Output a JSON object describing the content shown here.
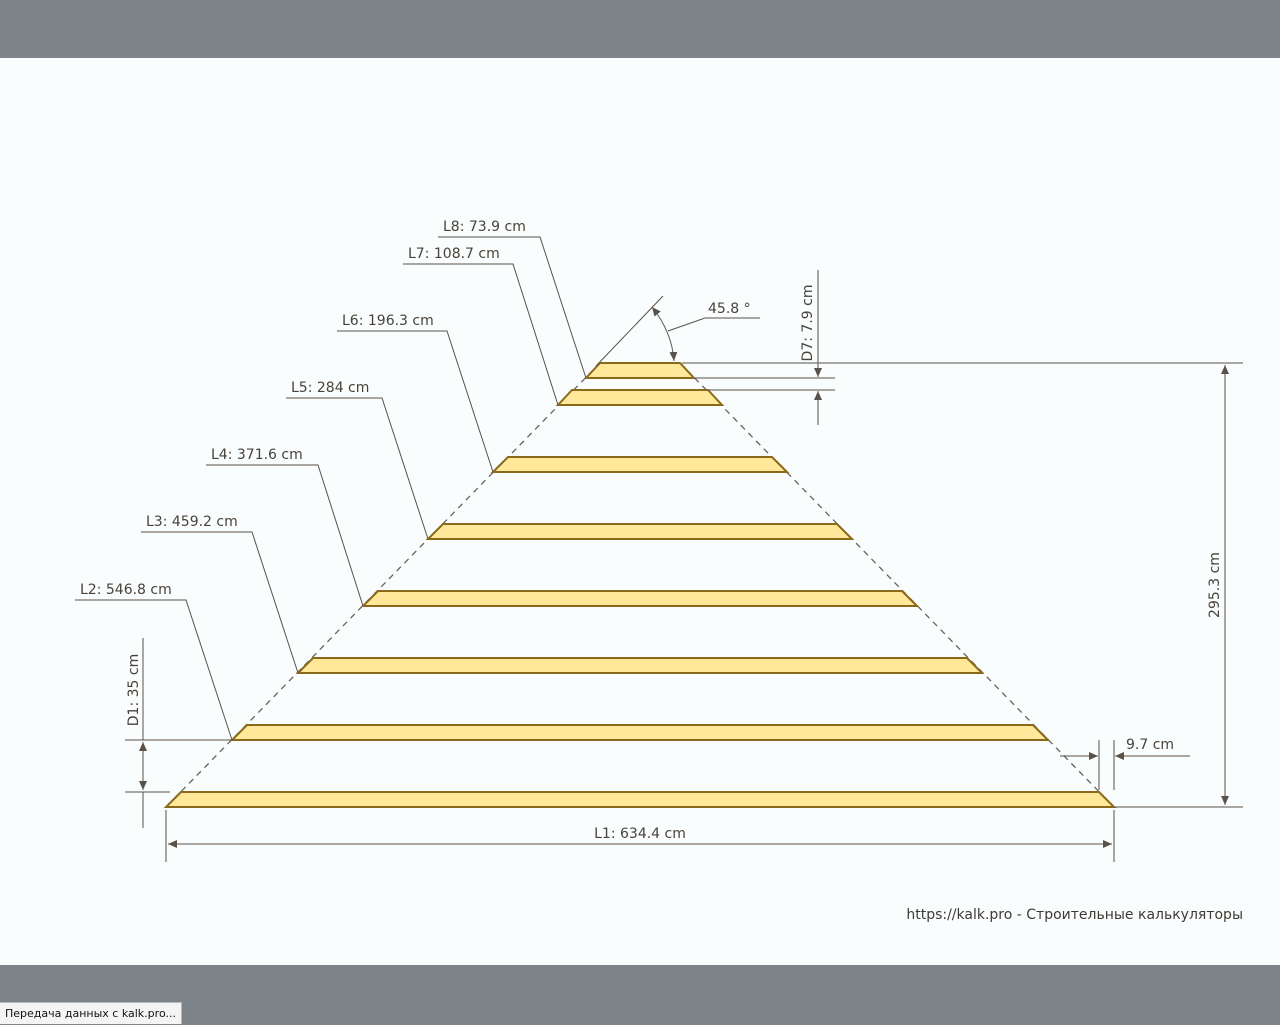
{
  "diagram": {
    "labels": {
      "l1": "L1: 634.4 cm",
      "l2": "L2: 546.8 cm",
      "l3": "L3: 459.2 cm",
      "l4": "L4: 371.6 cm",
      "l5": "L5: 284 cm",
      "l6": "L6: 196.3 cm",
      "l7": "L7: 108.7 cm",
      "l8": "L8: 73.9 cm",
      "angle": "45.8 °",
      "d1": "D1: 35 cm",
      "d7": "D7: 7.9 cm",
      "height": "295.3 cm",
      "overhang": "9.7 cm"
    },
    "credit": "https://kalk.pro - Строительные калькуляторы",
    "colors": {
      "plank_fill": "#ffe89a",
      "plank_stroke": "#8a6a1a",
      "line": "#5a5148"
    }
  },
  "status_bar": {
    "text": "Передача данных с kalk.pro..."
  }
}
